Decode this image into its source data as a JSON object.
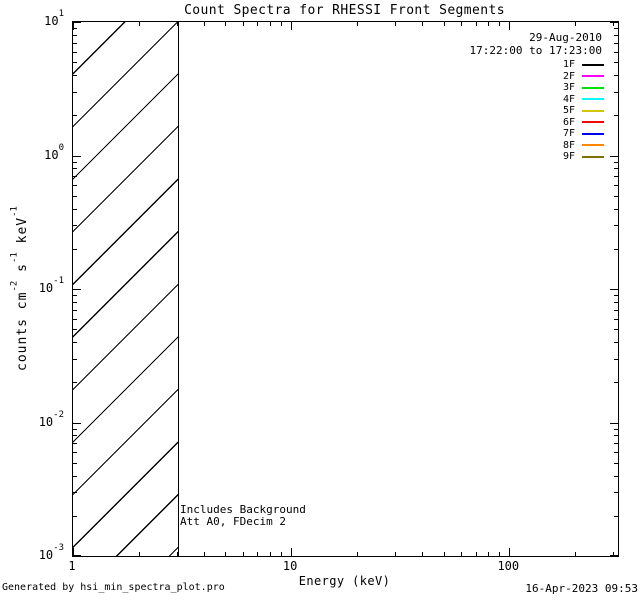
{
  "chart_data": {
    "type": "line",
    "title": "Count Spectra for RHESSI Front Segments",
    "xlabel": "Energy (keV)",
    "ylabel": "counts cm^-2 s^-1 keV^-1",
    "ylabel_segments": [
      {
        "text": "counts cm"
      },
      {
        "text": "-2",
        "sup": true
      },
      {
        "text": " s"
      },
      {
        "text": "-1",
        "sup": true
      },
      {
        "text": " keV"
      },
      {
        "text": "-1",
        "sup": true
      }
    ],
    "x_axis": {
      "scale": "log",
      "min": 1,
      "max": 315,
      "major_ticks": [
        1,
        10,
        100
      ],
      "tick_labels": [
        "1",
        "10",
        "100"
      ]
    },
    "y_axis": {
      "scale": "log",
      "min": 0.001,
      "max": 10,
      "major_exponents": [
        1,
        0,
        -1,
        -2,
        -3
      ]
    },
    "grid": false,
    "series": [],
    "hatched_region": {
      "x_start_keV": 1,
      "x_end_keV": 3,
      "pattern": "diagonal-hatch",
      "spans_full_y_range": true
    },
    "legend": {
      "position": "top-right",
      "date": "29-Aug-2010",
      "time_range": "17:22:00 to 17:23:00",
      "entries": [
        {
          "label": "1F",
          "color": "#000000"
        },
        {
          "label": "2F",
          "color": "#ff00ff"
        },
        {
          "label": "3F",
          "color": "#00e100"
        },
        {
          "label": "4F",
          "color": "#00ffff"
        },
        {
          "label": "5F",
          "color": "#d1c400"
        },
        {
          "label": "6F",
          "color": "#ff0000"
        },
        {
          "label": "7F",
          "color": "#0000ff"
        },
        {
          "label": "8F",
          "color": "#ff8700"
        },
        {
          "label": "9F",
          "color": "#7f7000"
        }
      ]
    },
    "annotations": {
      "line1": "Includes Background",
      "line2": "Att A0, FDecim 2"
    }
  },
  "footer": {
    "left": "Generated by hsi_min_spectra_plot.pro",
    "right": "16-Apr-2023 09:53"
  }
}
